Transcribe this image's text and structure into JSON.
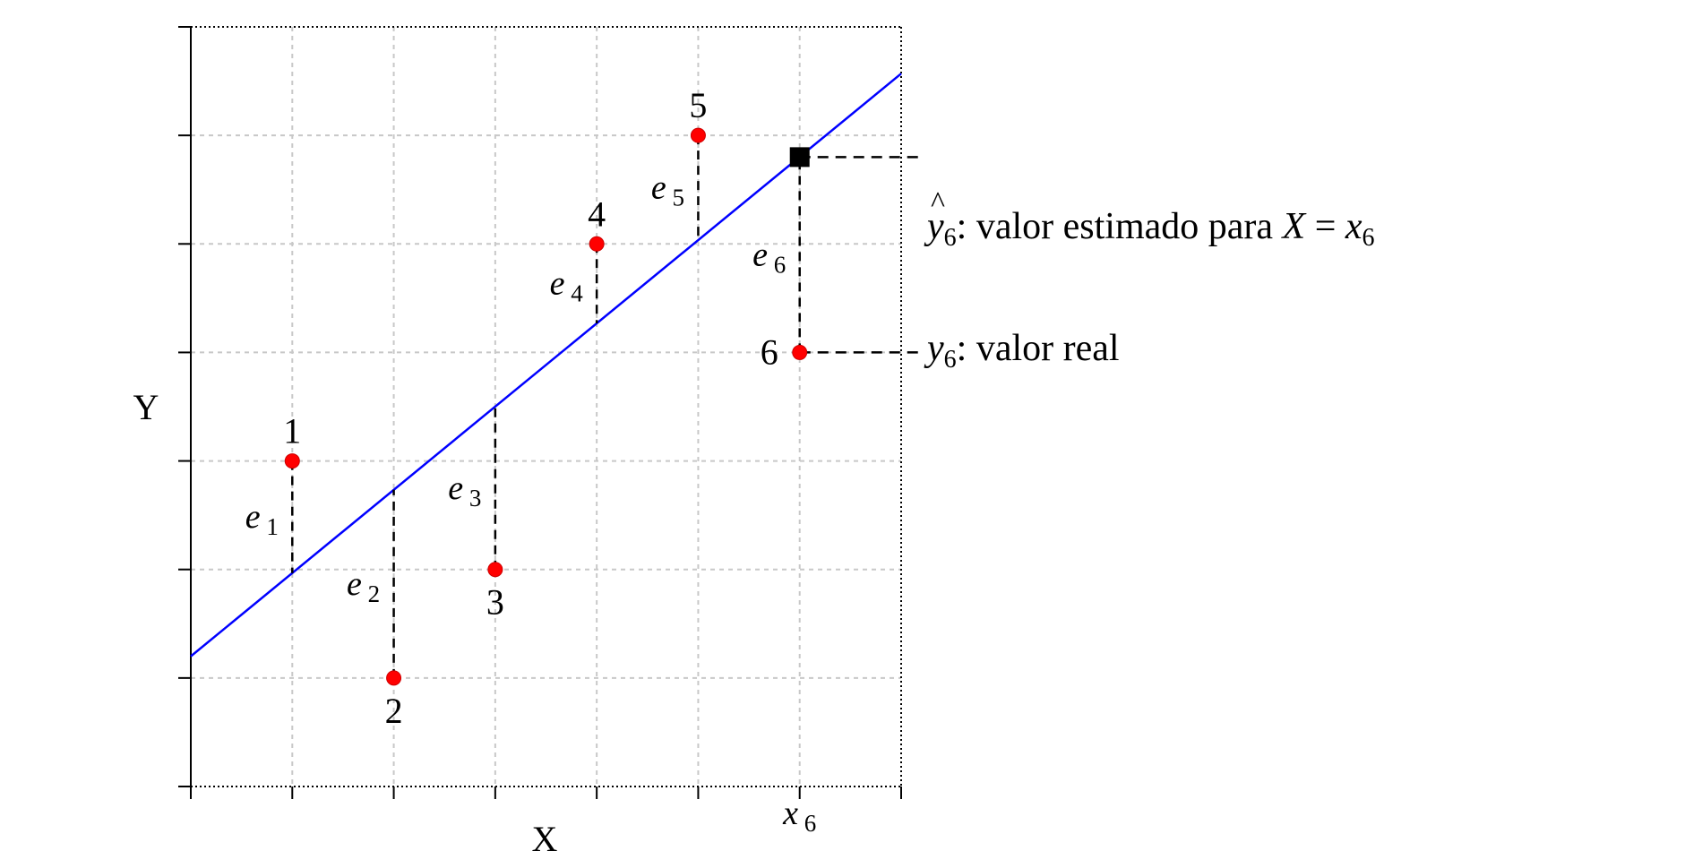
{
  "chart_data": {
    "type": "scatter",
    "title": "",
    "xlabel": "X",
    "ylabel": "Y",
    "xlim": [
      0,
      7
    ],
    "ylim": [
      0,
      7
    ],
    "x_tick_labels": [
      {
        "x": 6,
        "base": "x",
        "sub": "6"
      }
    ],
    "grid": true,
    "colors": {
      "points": "#ff0000",
      "regression_line": "#0000ff",
      "grid": "#c8c8c8",
      "residuals": "#000000"
    },
    "regression_line": {
      "intercept": 1.2,
      "slope": 0.767
    },
    "points": [
      {
        "label": "1",
        "x": 1,
        "y": 3,
        "label_pos": "above",
        "residual": {
          "base": "e",
          "sub": "1"
        }
      },
      {
        "label": "2",
        "x": 2,
        "y": 1,
        "label_pos": "below",
        "residual": {
          "base": "e",
          "sub": "2"
        }
      },
      {
        "label": "3",
        "x": 3,
        "y": 2,
        "label_pos": "below",
        "residual": {
          "base": "e",
          "sub": "3"
        }
      },
      {
        "label": "4",
        "x": 4,
        "y": 5,
        "label_pos": "above",
        "residual": {
          "base": "e",
          "sub": "4"
        }
      },
      {
        "label": "5",
        "x": 5,
        "y": 6,
        "label_pos": "above",
        "residual": {
          "base": "e",
          "sub": "5"
        }
      },
      {
        "label": "6",
        "x": 6,
        "y": 4,
        "label_pos": "left",
        "residual": {
          "base": "e",
          "sub": "6"
        }
      }
    ],
    "estimated_point": {
      "x": 6,
      "y": 5.8
    }
  },
  "annotations": {
    "estimated": {
      "symbol": "y",
      "sub": "6",
      "colon": ":",
      "text": "valor estimado para",
      "eq_lhs": "X",
      "eq_sign": "=",
      "eq_rhs": "x",
      "eq_rhs_sub": "6"
    },
    "real": {
      "symbol": "y",
      "sub": "6",
      "colon": ":",
      "text": "valor real"
    }
  }
}
